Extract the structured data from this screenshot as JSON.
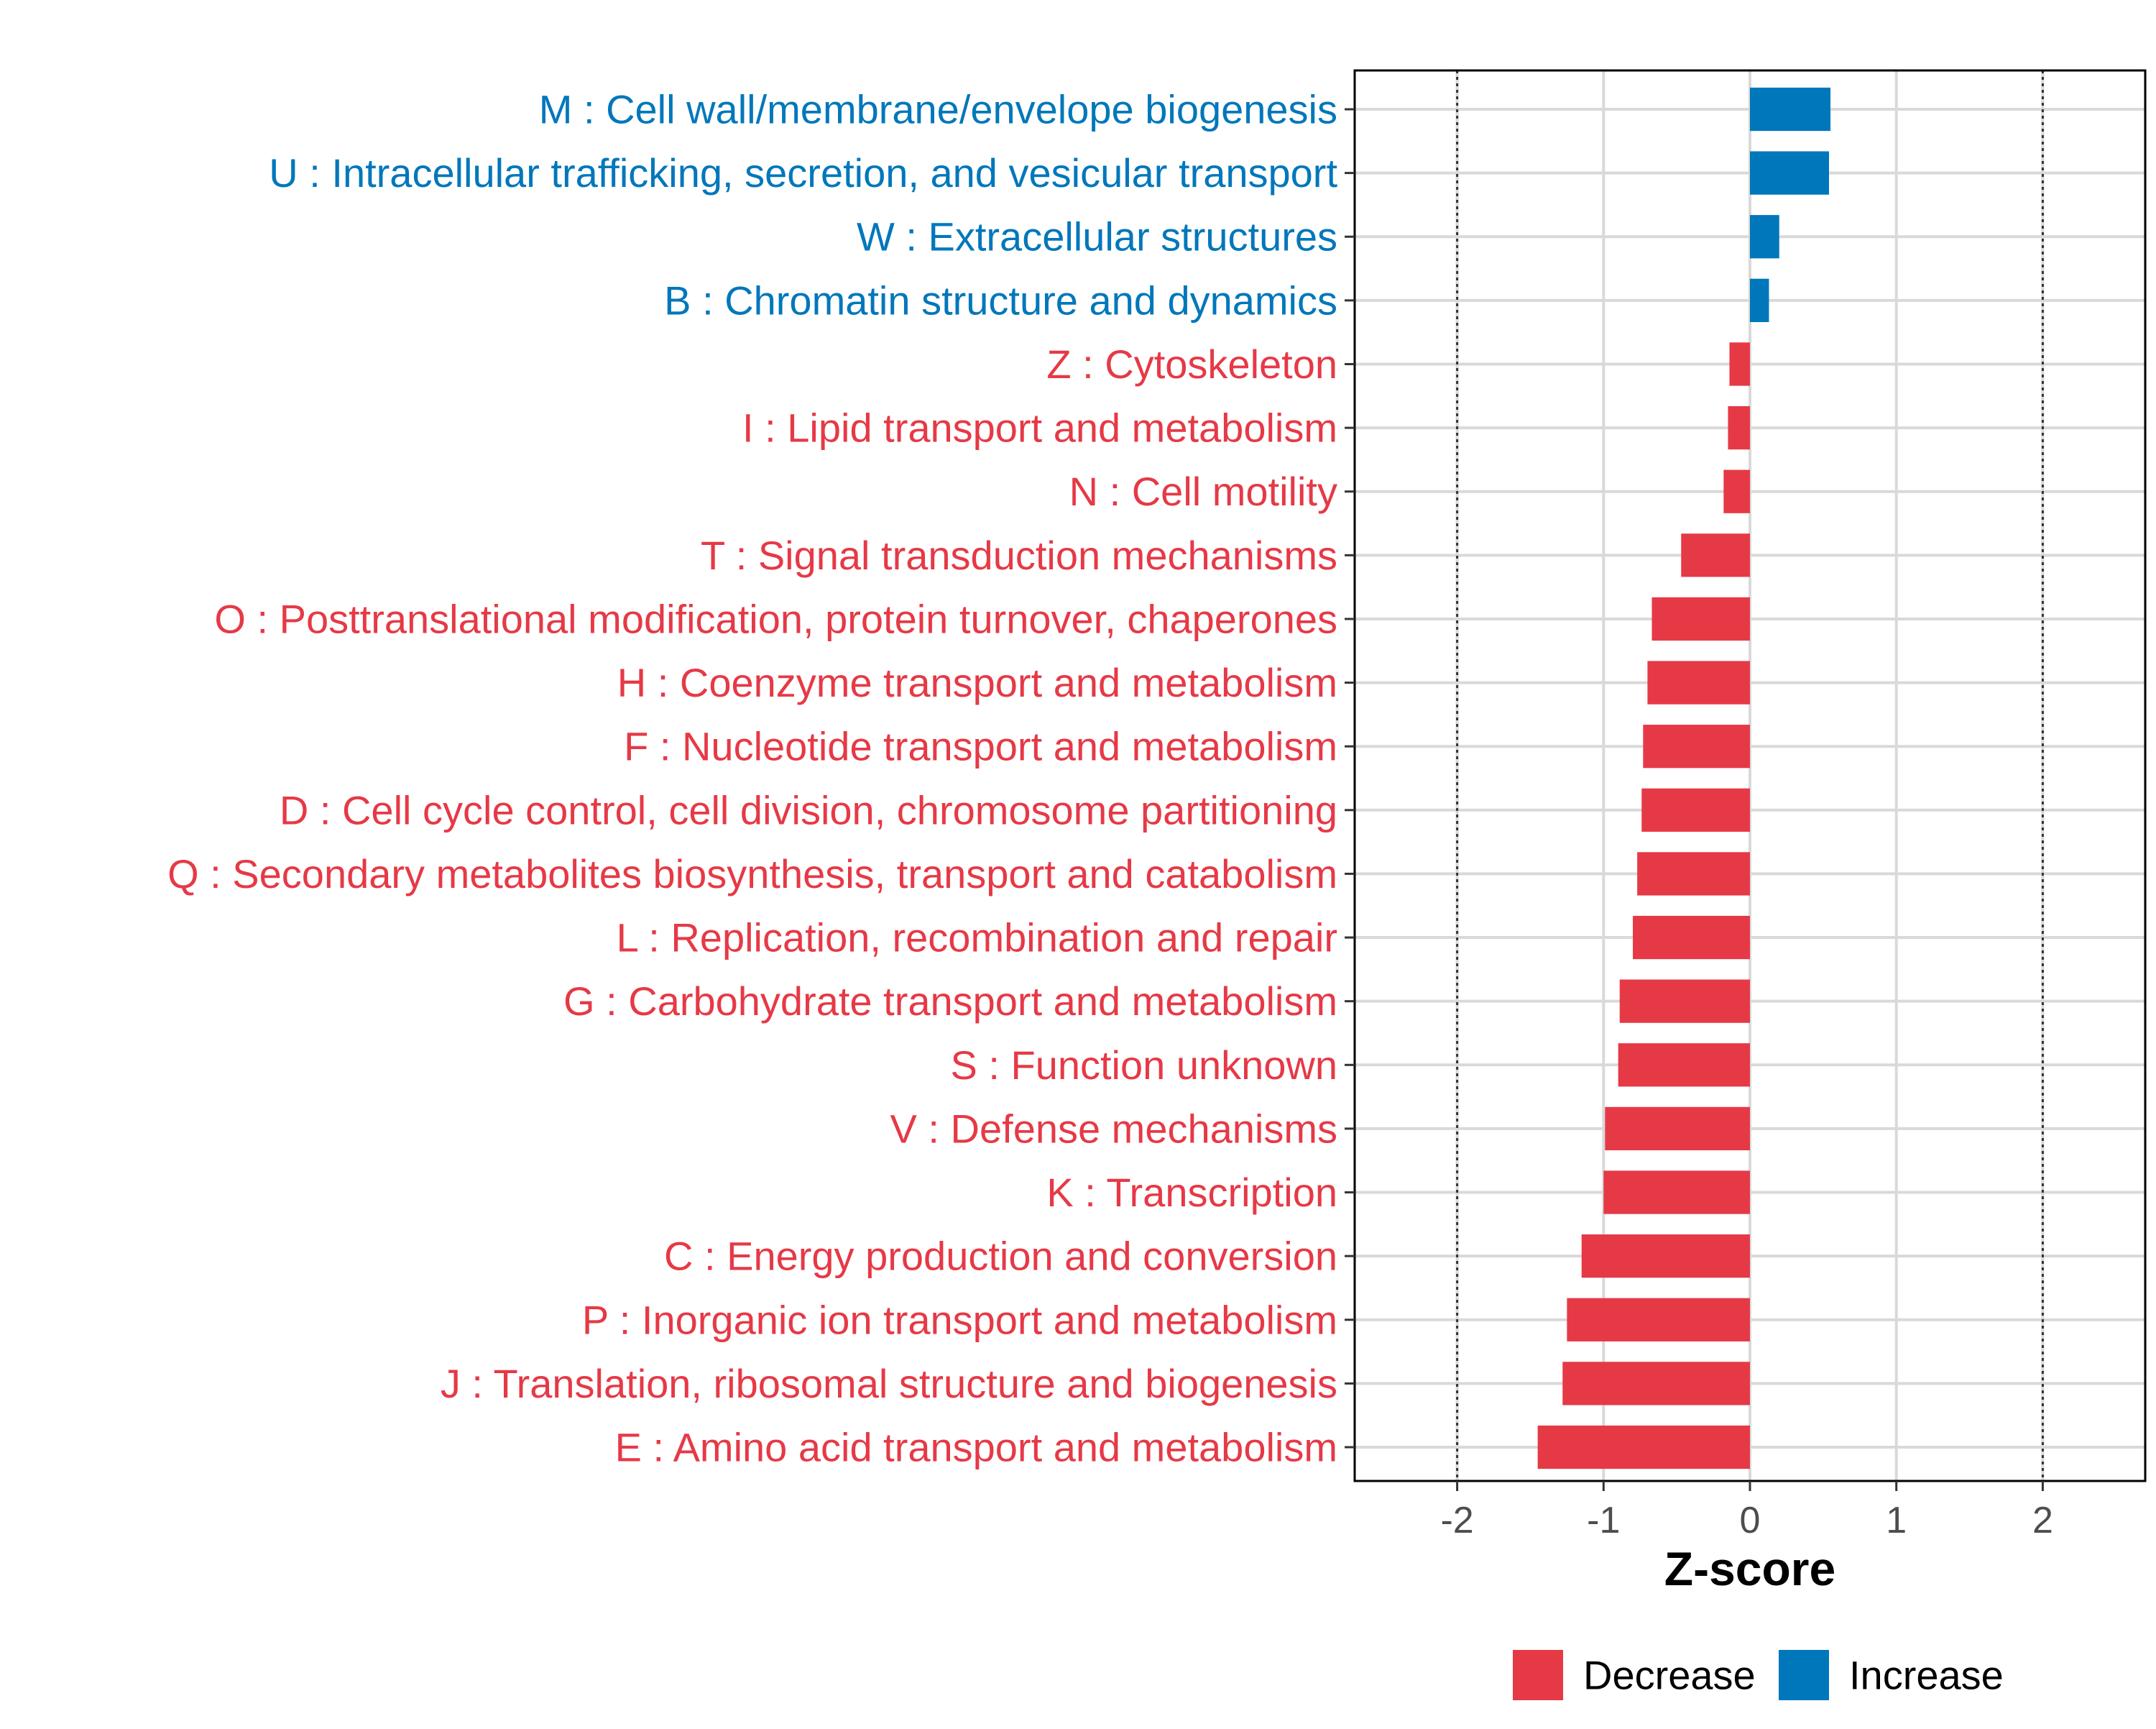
{
  "chart_data": {
    "type": "bar",
    "orientation": "horizontal",
    "xlabel": "Z-score",
    "ylabel": "",
    "xlim": [
      -2.7,
      2.7
    ],
    "xticks": [
      -2,
      -1,
      0,
      1,
      2
    ],
    "xtick_labels": [
      "-2",
      "-1",
      "0",
      "1",
      "2"
    ],
    "reference_lines": [
      -2,
      2
    ],
    "grid": true,
    "colors": {
      "Decrease": "#e63946",
      "Increase": "#0077bb"
    },
    "categories": [
      {
        "label": "M : Cell wall/membrane/envelope biogenesis",
        "value": 0.55,
        "group": "Increase"
      },
      {
        "label": "U : Intracellular trafficking, secretion, and vesicular transport",
        "value": 0.54,
        "group": "Increase"
      },
      {
        "label": "W : Extracellular structures",
        "value": 0.2,
        "group": "Increase"
      },
      {
        "label": "B : Chromatin structure and dynamics",
        "value": 0.13,
        "group": "Increase"
      },
      {
        "label": "Z : Cytoskeleton",
        "value": -0.14,
        "group": "Decrease"
      },
      {
        "label": "I : Lipid transport and metabolism",
        "value": -0.15,
        "group": "Decrease"
      },
      {
        "label": "N : Cell motility",
        "value": -0.18,
        "group": "Decrease"
      },
      {
        "label": "T : Signal transduction mechanisms",
        "value": -0.47,
        "group": "Decrease"
      },
      {
        "label": "O : Posttranslational modification, protein turnover, chaperones",
        "value": -0.67,
        "group": "Decrease"
      },
      {
        "label": "H : Coenzyme transport and metabolism",
        "value": -0.7,
        "group": "Decrease"
      },
      {
        "label": "F : Nucleotide transport and metabolism",
        "value": -0.73,
        "group": "Decrease"
      },
      {
        "label": "D : Cell cycle control, cell division, chromosome partitioning",
        "value": -0.74,
        "group": "Decrease"
      },
      {
        "label": "Q : Secondary metabolites biosynthesis, transport and catabolism",
        "value": -0.77,
        "group": "Decrease"
      },
      {
        "label": "L : Replication, recombination and repair",
        "value": -0.8,
        "group": "Decrease"
      },
      {
        "label": "G : Carbohydrate transport and metabolism",
        "value": -0.89,
        "group": "Decrease"
      },
      {
        "label": "S : Function unknown",
        "value": -0.9,
        "group": "Decrease"
      },
      {
        "label": "V : Defense mechanisms",
        "value": -0.99,
        "group": "Decrease"
      },
      {
        "label": "K : Transcription",
        "value": -1.0,
        "group": "Decrease"
      },
      {
        "label": "C : Energy production and conversion",
        "value": -1.15,
        "group": "Decrease"
      },
      {
        "label": "P : Inorganic ion transport and metabolism",
        "value": -1.25,
        "group": "Decrease"
      },
      {
        "label": "J : Translation, ribosomal structure and biogenesis",
        "value": -1.28,
        "group": "Decrease"
      },
      {
        "label": "E : Amino acid transport and metabolism",
        "value": -1.45,
        "group": "Decrease"
      }
    ],
    "legend": [
      {
        "label": "Decrease",
        "color": "#e63946"
      },
      {
        "label": "Increase",
        "color": "#0077bb"
      }
    ],
    "legend_position": "bottom"
  }
}
